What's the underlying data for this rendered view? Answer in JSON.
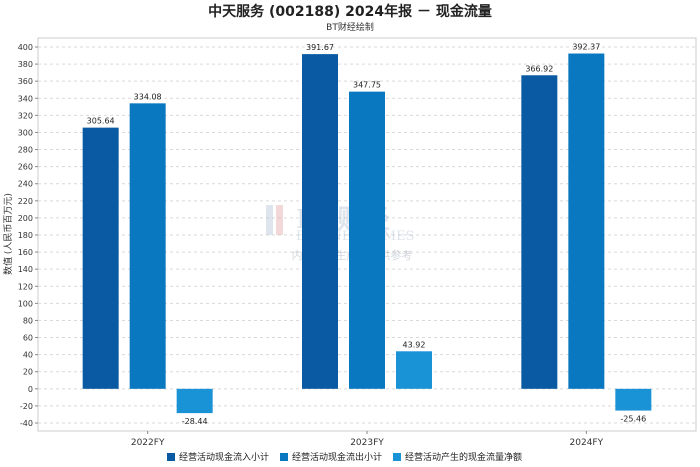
{
  "chart_data": {
    "type": "bar",
    "title": "中天服务 (002188) 2024年报 － 现金流量",
    "subtitle": "BT财经绘制",
    "ylabel": "数值 (人民币百万元)",
    "xlabel": "",
    "categories": [
      "2022FY",
      "2023FY",
      "2024FY"
    ],
    "series": [
      {
        "name": "经营活动现金流入小计",
        "values": [
          305.64,
          391.67,
          366.92
        ],
        "color": "#0a5aa3"
      },
      {
        "name": "经营活动现金流出小计",
        "values": [
          334.08,
          347.75,
          392.37
        ],
        "color": "#0a78c0"
      },
      {
        "name": "经营活动产生的现金流量净额",
        "values": [
          -28.44,
          43.92,
          -25.46
        ],
        "color": "#1a93d6"
      }
    ],
    "ylim": [
      -40,
      400
    ],
    "yticks": [
      -40,
      -20,
      0,
      20,
      40,
      60,
      80,
      100,
      120,
      140,
      160,
      180,
      200,
      220,
      240,
      260,
      280,
      300,
      320,
      340,
      360,
      380,
      400
    ],
    "grid": true,
    "legend": "bottom"
  },
  "watermark": {
    "logo": "BT财经",
    "brand": "BUSINESSTIMES",
    "note": "内容由AI生成，仅供参考"
  }
}
